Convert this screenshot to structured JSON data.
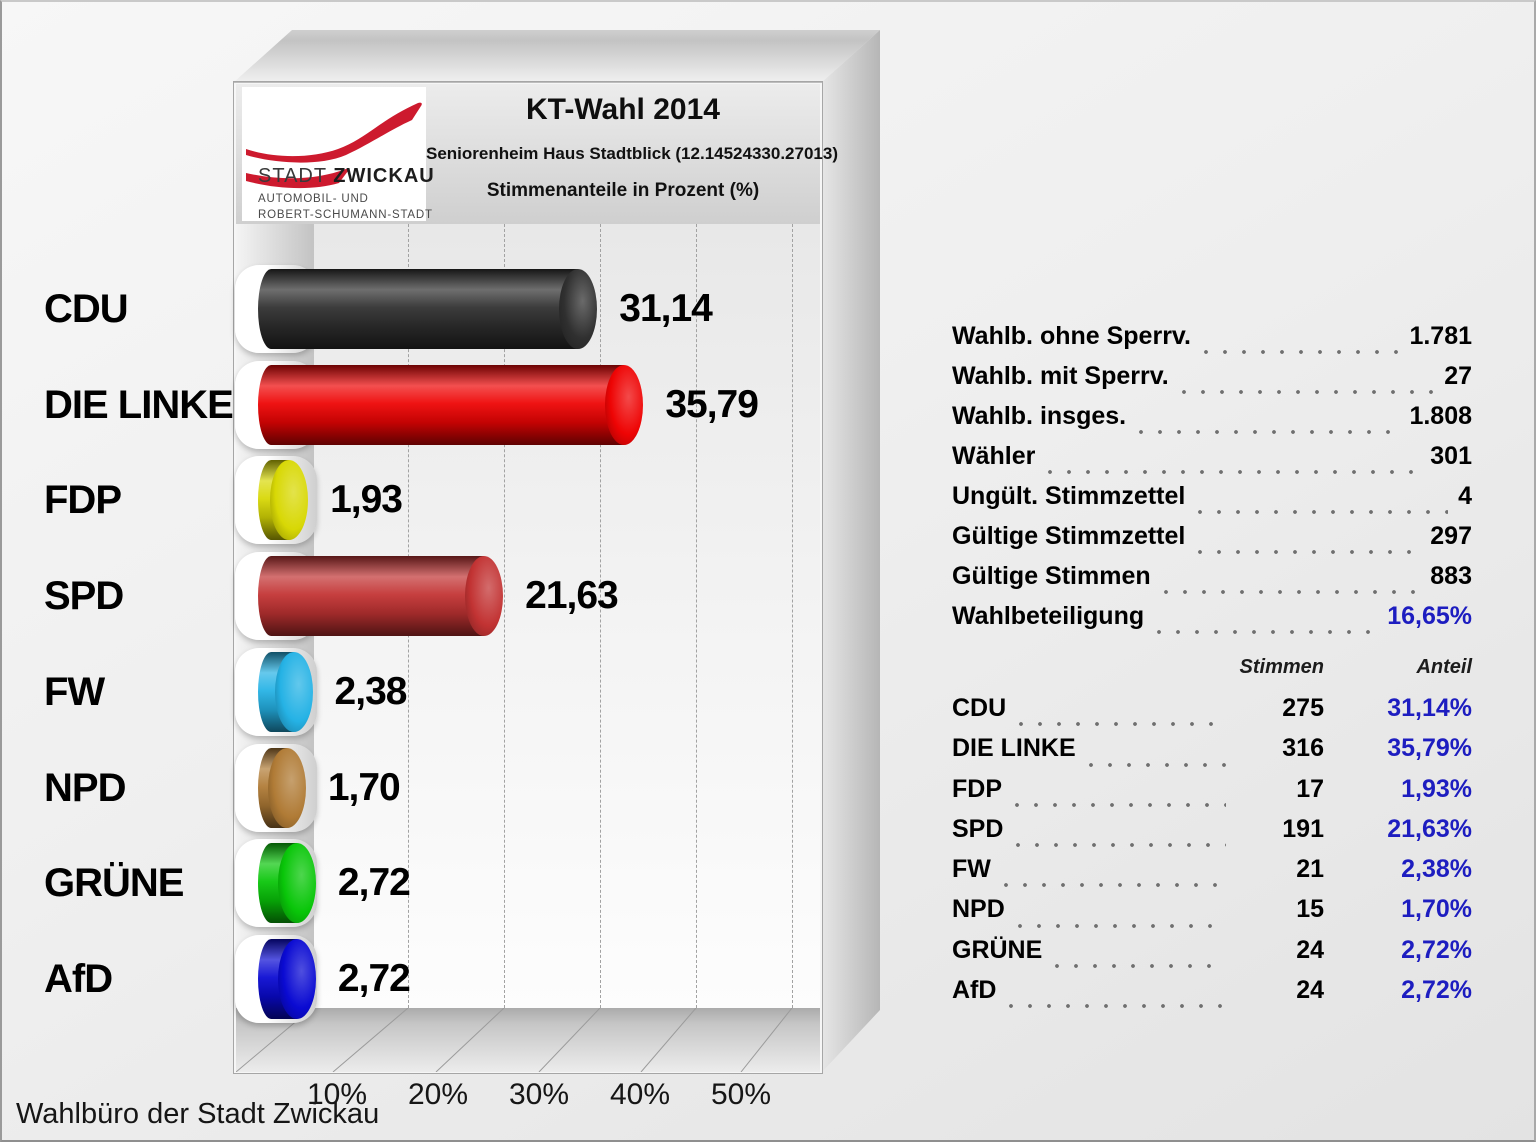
{
  "window": {
    "footer_note": "Wahlbüro der Stadt Zwickau"
  },
  "logo": {
    "brand_regular": "STADT ",
    "brand_bold": "ZWICKAU",
    "subline1": "AUTOMOBIL- UND",
    "subline2": "ROBERT-SCHUMANN-STADT",
    "swoosh_color": "#cd1a2e"
  },
  "header": {
    "title": "KT-Wahl 2014",
    "subtitle": "Seniorenheim Haus Stadtblick (12.14524330.27013)",
    "measure_label": "Stimmenanteile in Prozent (%)"
  },
  "chart_data": {
    "type": "bar",
    "orientation": "horizontal",
    "title": "KT-Wahl 2014",
    "subtitle": "Seniorenheim Haus Stadtblick (12.14524330.27013)",
    "value_axis_label": "Stimmenanteile in Prozent (%)",
    "categories": [
      "CDU",
      "DIE LINKE",
      "FDP",
      "SPD",
      "FW",
      "NPD",
      "GRÜNE",
      "AfD"
    ],
    "values": [
      31.14,
      35.79,
      1.93,
      21.63,
      2.38,
      1.7,
      2.72,
      2.72
    ],
    "value_labels": [
      "31,14",
      "35,79",
      "1,93",
      "21,63",
      "2,38",
      "1,70",
      "2,72",
      "2,72"
    ],
    "bar_colors": [
      "#303030",
      "#ee0404",
      "#d8d805",
      "#c23333",
      "#25b2e5",
      "#b07b36",
      "#09c609",
      "#0a0ad2"
    ],
    "x_ticks": [
      "10%",
      "20%",
      "30%",
      "40%",
      "50%"
    ],
    "x_tick_values": [
      10,
      20,
      30,
      40,
      50
    ],
    "xlim": [
      0,
      55
    ],
    "grid": "dashed-vertical",
    "legend": "none"
  },
  "stats": {
    "rows": [
      {
        "label": "Wahlb. ohne Sperrv.",
        "value": "1.781",
        "emphasis": false
      },
      {
        "label": "Wahlb. mit Sperrv.",
        "value": "27",
        "emphasis": false
      },
      {
        "label": "Wahlb. insges.",
        "value": "1.808",
        "emphasis": false
      },
      {
        "label": "Wähler",
        "value": "301",
        "emphasis": false
      },
      {
        "label": "Ungült. Stimmzettel",
        "value": "4",
        "emphasis": false
      },
      {
        "label": "Gültige Stimmzettel",
        "value": "297",
        "emphasis": false
      },
      {
        "label": "Gültige Stimmen",
        "value": "883",
        "emphasis": false
      },
      {
        "label": "Wahlbeteiligung",
        "value": "16,65%",
        "emphasis": true
      }
    ]
  },
  "results_table": {
    "headers": {
      "stimmen": "Stimmen",
      "anteil": "Anteil"
    },
    "rows": [
      {
        "party": "CDU",
        "stimmen": "275",
        "anteil": "31,14%"
      },
      {
        "party": "DIE LINKE",
        "stimmen": "316",
        "anteil": "35,79%"
      },
      {
        "party": "FDP",
        "stimmen": "17",
        "anteil": "1,93%"
      },
      {
        "party": "SPD",
        "stimmen": "191",
        "anteil": "21,63%"
      },
      {
        "party": "FW",
        "stimmen": "21",
        "anteil": "2,38%"
      },
      {
        "party": "NPD",
        "stimmen": "15",
        "anteil": "1,70%"
      },
      {
        "party": "GRÜNE",
        "stimmen": "24",
        "anteil": "2,72%"
      },
      {
        "party": "AfD",
        "stimmen": "24",
        "anteil": "2,72%"
      }
    ]
  },
  "colors": {
    "accent_blue": "#1d1dc0",
    "dot_leader": "#6f6f6f",
    "background": "#efefef"
  }
}
